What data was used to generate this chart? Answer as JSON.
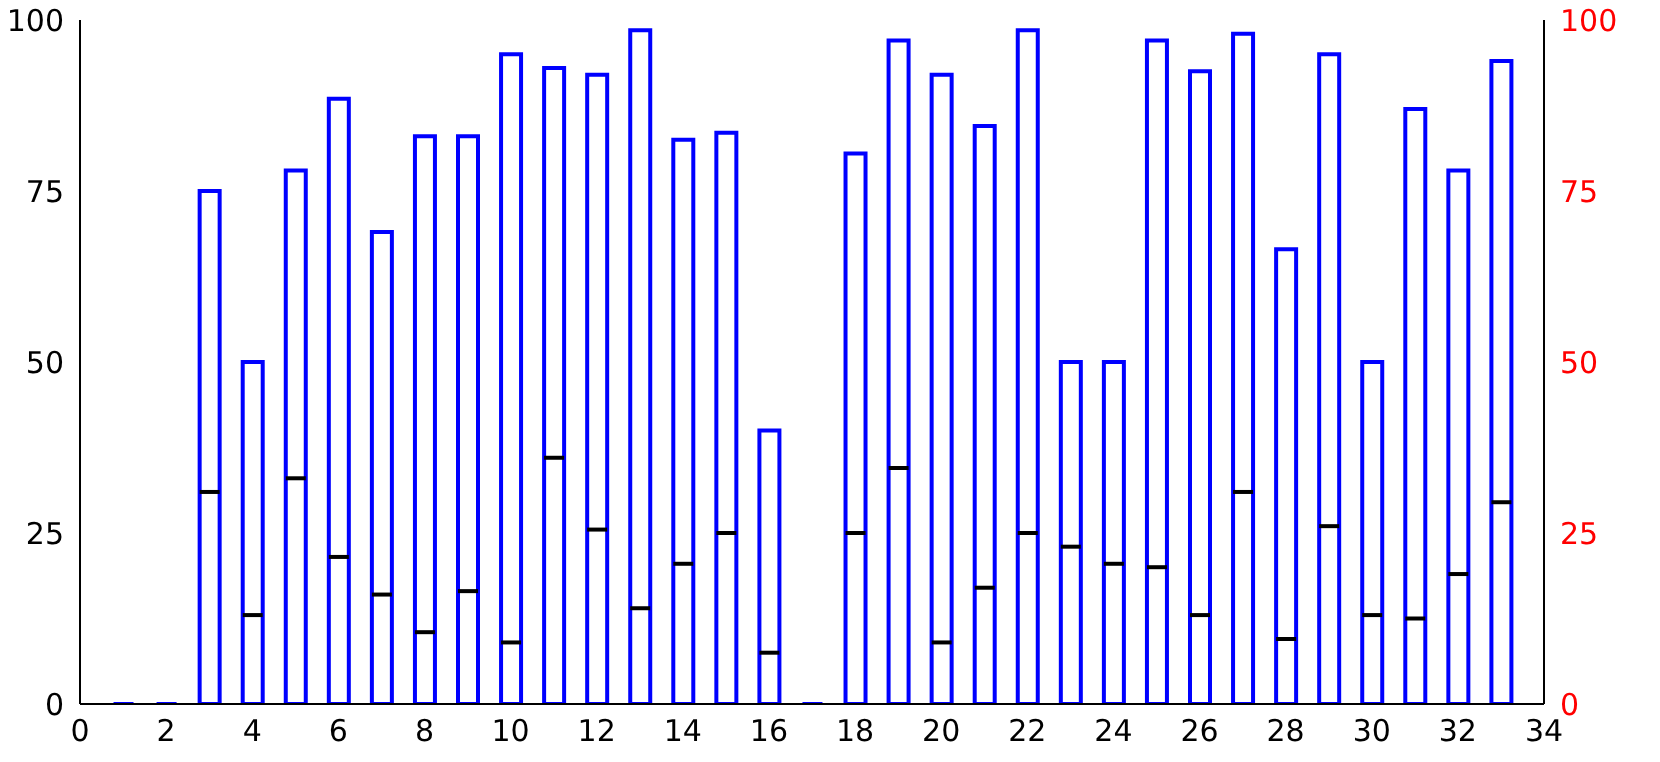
{
  "chart_data": {
    "type": "box",
    "x": [
      1,
      2,
      3,
      4,
      5,
      6,
      7,
      8,
      9,
      10,
      11,
      12,
      13,
      14,
      15,
      16,
      17,
      18,
      19,
      20,
      21,
      22,
      23,
      24,
      25,
      26,
      27,
      28,
      29,
      30,
      31,
      32,
      33
    ],
    "color": "#0000ff",
    "boxes": [
      {
        "low": 0,
        "q1": 0,
        "median": 0,
        "q3": 0,
        "high": 0
      },
      {
        "low": 0,
        "q1": 0,
        "median": 0,
        "q3": 0,
        "high": 0
      },
      {
        "low": 0,
        "q1": 0,
        "median": 31,
        "q3": 75,
        "high": 75
      },
      {
        "low": 0,
        "q1": 0,
        "median": 13,
        "q3": 50,
        "high": 50
      },
      {
        "low": 0,
        "q1": 0,
        "median": 33,
        "q3": 78,
        "high": 78
      },
      {
        "low": 0,
        "q1": 0,
        "median": 21.5,
        "q3": 88.5,
        "high": 88.5
      },
      {
        "low": 0,
        "q1": 0,
        "median": 16,
        "q3": 69,
        "high": 69
      },
      {
        "low": 0,
        "q1": 0,
        "median": 10.5,
        "q3": 83,
        "high": 83
      },
      {
        "low": 0,
        "q1": 0,
        "median": 16.5,
        "q3": 83,
        "high": 83
      },
      {
        "low": 0,
        "q1": 0,
        "median": 9,
        "q3": 95,
        "high": 95
      },
      {
        "low": 0,
        "q1": 0,
        "median": 36,
        "q3": 93,
        "high": 93
      },
      {
        "low": 0,
        "q1": 0,
        "median": 25.5,
        "q3": 92,
        "high": 92
      },
      {
        "low": 0,
        "q1": 0,
        "median": 14,
        "q3": 98.5,
        "high": 98.5
      },
      {
        "low": 0,
        "q1": 0,
        "median": 20.5,
        "q3": 82.5,
        "high": 82.5
      },
      {
        "low": 0,
        "q1": 0,
        "median": 25,
        "q3": 83.5,
        "high": 83.5
      },
      {
        "low": 0,
        "q1": 0,
        "median": 7.5,
        "q3": 40,
        "high": 40
      },
      {
        "low": 0,
        "q1": 0,
        "median": 0,
        "q3": 0,
        "high": 0
      },
      {
        "low": 0,
        "q1": 0,
        "median": 25,
        "q3": 80.5,
        "high": 80.5
      },
      {
        "low": 0,
        "q1": 0,
        "median": 34.5,
        "q3": 97,
        "high": 97
      },
      {
        "low": 0,
        "q1": 0,
        "median": 9,
        "q3": 92,
        "high": 92
      },
      {
        "low": 0,
        "q1": 0,
        "median": 17,
        "q3": 84.5,
        "high": 84.5
      },
      {
        "low": 0,
        "q1": 0,
        "median": 25,
        "q3": 98.5,
        "high": 98.5
      },
      {
        "low": 0,
        "q1": 0,
        "median": 23,
        "q3": 50,
        "high": 50
      },
      {
        "low": 0,
        "q1": 0,
        "median": 20.5,
        "q3": 50,
        "high": 50
      },
      {
        "low": 0,
        "q1": 0,
        "median": 20,
        "q3": 97,
        "high": 97
      },
      {
        "low": 0,
        "q1": 0,
        "median": 13,
        "q3": 92.5,
        "high": 92.5
      },
      {
        "low": 0,
        "q1": 0,
        "median": 31,
        "q3": 98,
        "high": 98
      },
      {
        "low": 0,
        "q1": 0,
        "median": 9.5,
        "q3": 66.5,
        "high": 66.5
      },
      {
        "low": 0,
        "q1": 0,
        "median": 26,
        "q3": 95,
        "high": 95
      },
      {
        "low": 0,
        "q1": 0,
        "median": 13,
        "q3": 50,
        "high": 50
      },
      {
        "low": 0,
        "q1": 0,
        "median": 12.5,
        "q3": 87,
        "high": 87
      },
      {
        "low": 0,
        "q1": 0,
        "median": 19,
        "q3": 78,
        "high": 78
      },
      {
        "low": 0,
        "q1": 0,
        "median": 29.5,
        "q3": 94,
        "high": 94
      }
    ],
    "xlim": [
      0,
      34
    ],
    "xticks": [
      0,
      2,
      4,
      6,
      8,
      10,
      12,
      14,
      16,
      18,
      20,
      22,
      24,
      26,
      28,
      30,
      32,
      34
    ],
    "ylim": [
      0,
      100
    ],
    "yticks": [
      0,
      25,
      50,
      75,
      100
    ],
    "y2lim": [
      0,
      100
    ],
    "y2ticks": [
      0,
      25,
      50,
      75,
      100
    ]
  }
}
